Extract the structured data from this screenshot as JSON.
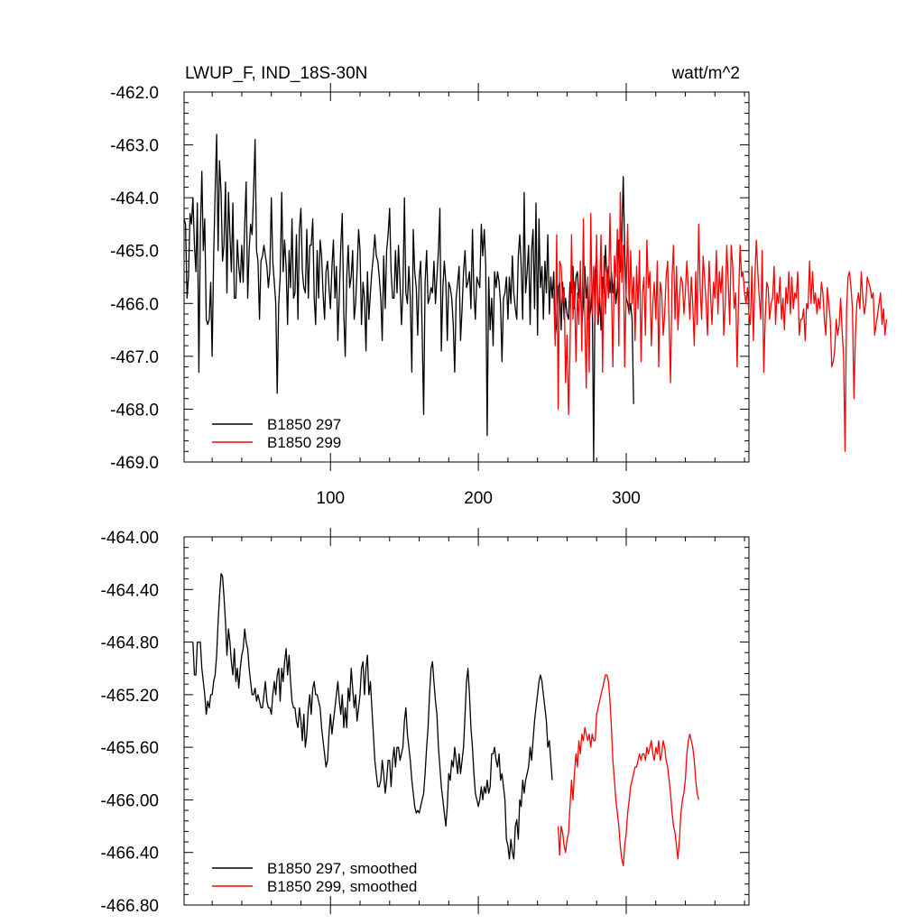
{
  "chart_data": [
    {
      "type": "line",
      "title": "LWUP_F, IND_18S-30N",
      "units": "watt/m^2",
      "xlim": [
        1,
        383
      ],
      "ylim": [
        -469.0,
        -462.0
      ],
      "ytick_values": [
        -462.0,
        -463.0,
        -464.0,
        -465.0,
        -466.0,
        -467.0,
        -468.0,
        -469.0
      ],
      "ytick_labels": [
        "-462.0",
        "-463.0",
        "-464.0",
        "-465.0",
        "-466.0",
        "-467.0",
        "-468.0",
        "-469.0"
      ],
      "xtick_values": [
        100,
        200,
        300
      ],
      "xtick_labels": [
        "100",
        "200",
        "300"
      ],
      "legend_position": "bottom-left",
      "series": [
        {
          "name": "B1850 297",
          "color": "#000000",
          "x_start": 1,
          "values": [
            -464.4,
            -464.5,
            -465.9,
            -465.5,
            -464.3,
            -464.5,
            -464.0,
            -464.9,
            -465.4,
            -464.1,
            -467.3,
            -464.7,
            -463.5,
            -465.0,
            -464.4,
            -466.3,
            -466.4,
            -466.3,
            -465.6,
            -467.0,
            -465.1,
            -463.9,
            -462.8,
            -465.0,
            -463.3,
            -463.9,
            -465.2,
            -464.9,
            -463.7,
            -465.8,
            -463.9,
            -464.7,
            -465.4,
            -464.1,
            -465.9,
            -465.9,
            -464.8,
            -465.3,
            -465.6,
            -464.9,
            -465.6,
            -464.5,
            -463.7,
            -465.9,
            -465.0,
            -464.5,
            -464.7,
            -463.9,
            -462.9,
            -465.0,
            -465.2,
            -466.3,
            -465.2,
            -465.1,
            -464.9,
            -465.1,
            -465.3,
            -465.7,
            -465.4,
            -464.0,
            -465.2,
            -465.6,
            -466.0,
            -467.7,
            -466.0,
            -465.5,
            -463.9,
            -465.4,
            -464.8,
            -465.3,
            -466.4,
            -465.0,
            -465.7,
            -464.4,
            -465.9,
            -465.8,
            -464.7,
            -466.3,
            -464.6,
            -464.2,
            -465.4,
            -465.7,
            -465.8,
            -464.6,
            -465.9,
            -464.9,
            -464.9,
            -464.4,
            -465.9,
            -466.4,
            -465.0,
            -465.9,
            -464.8,
            -465.1,
            -465.8,
            -466.3,
            -465.4,
            -465.2,
            -465.7,
            -466.1,
            -465.3,
            -464.8,
            -465.9,
            -465.3,
            -466.7,
            -465.8,
            -464.9,
            -464.3,
            -466.2,
            -467.0,
            -465.5,
            -464.9,
            -465.7,
            -465.5,
            -465.0,
            -466.3,
            -466.0,
            -465.4,
            -464.6,
            -465.0,
            -466.4,
            -465.6,
            -465.9,
            -466.9,
            -465.4,
            -466.3,
            -465.8,
            -465.4,
            -465.1,
            -464.7,
            -465.1,
            -465.2,
            -465.5,
            -465.9,
            -466.7,
            -465.1,
            -466.1,
            -465.0,
            -464.7,
            -464.2,
            -465.4,
            -465.9,
            -465.9,
            -465.0,
            -465.8,
            -464.9,
            -465.6,
            -466.4,
            -465.8,
            -464.0,
            -465.8,
            -466.0,
            -465.3,
            -465.9,
            -467.3,
            -464.6,
            -465.4,
            -465.7,
            -466.6,
            -465.5,
            -465.2,
            -466.5,
            -468.1,
            -465.6,
            -465.0,
            -466.0,
            -465.9,
            -465.7,
            -465.8,
            -465.2,
            -466.0,
            -465.5,
            -465.0,
            -464.2,
            -466.9,
            -465.7,
            -465.2,
            -465.6,
            -466.7,
            -465.6,
            -465.7,
            -465.9,
            -466.4,
            -467.3,
            -465.9,
            -465.6,
            -465.3,
            -466.7,
            -466.1,
            -465.4,
            -465.0,
            -465.7,
            -465.6,
            -465.4,
            -466.1,
            -464.6,
            -465.8,
            -466.3,
            -465.5,
            -465.6,
            -465.7,
            -464.5,
            -465.1,
            -464.6,
            -465.3,
            -468.5,
            -465.5,
            -466.5,
            -465.9,
            -466.8,
            -465.4,
            -465.7,
            -465.4,
            -465.6,
            -466.0,
            -467.1,
            -465.9,
            -465.8,
            -465.5,
            -466.3,
            -465.5,
            -466.0,
            -465.1,
            -465.8,
            -466.1,
            -466.3,
            -465.1,
            -464.7,
            -465.3,
            -466.3,
            -463.9,
            -465.8,
            -465.4,
            -464.9,
            -466.4,
            -465.0,
            -464.6,
            -466.1,
            -464.1,
            -466.6,
            -464.4,
            -465.7,
            -465.3,
            -466.3,
            -465.2,
            -465.8,
            -464.7,
            -466.2,
            -465.5,
            -465.9,
            -465.4,
            -466.6,
            -466.4,
            -465.7,
            -465.6,
            -466.5,
            -465.6,
            -466.3,
            -465.9,
            -466.2,
            -466.3,
            -465.6,
            -465.8,
            -465.3,
            -466.1,
            -465.5,
            -465.4,
            -465.9,
            -465.6,
            -466.4,
            -466.0,
            -465.3,
            -465.9,
            -465.6,
            -466.3,
            -466.1,
            -465.7,
            -469.0,
            -465.4,
            -465.1,
            -466.4,
            -465.9,
            -466.5,
            -465.5,
            -465.8,
            -464.9,
            -465.6,
            -465.3,
            -465.8,
            -465.4,
            -465.8,
            -465.5,
            -466.0,
            -465.7,
            -464.8,
            -465.4,
            -464.8,
            -463.6,
            -465.0,
            -465.9,
            -466.0,
            -466.2,
            -466.0,
            -466.3,
            -467.9
          ],
          "note": ""
        },
        {
          "name": "B1850 299",
          "color": "#ff0000",
          "x_start": 251,
          "values": [
            -465.8,
            -466.8,
            -464.7,
            -468.0,
            -465.2,
            -465.3,
            -466.0,
            -465.7,
            -467.5,
            -466.6,
            -468.1,
            -466.9,
            -464.7,
            -466.3,
            -465.6,
            -467.1,
            -465.8,
            -466.4,
            -465.2,
            -466.9,
            -464.4,
            -466.3,
            -467.6,
            -465.5,
            -467.3,
            -464.3,
            -466.2,
            -465.3,
            -466.4,
            -464.7,
            -466.3,
            -465.8,
            -464.7,
            -467.3,
            -465.1,
            -466.2,
            -465.4,
            -465.9,
            -464.3,
            -465.7,
            -467.2,
            -465.1,
            -465.5,
            -464.6,
            -466.8,
            -463.9,
            -465.6,
            -464.9,
            -467.2,
            -465.7,
            -464.5,
            -466.2,
            -465.0,
            -466.0,
            -465.5,
            -466.7,
            -465.3,
            -466.1,
            -465.0,
            -467.1,
            -465.8,
            -465.5,
            -466.6,
            -464.8,
            -465.7,
            -465.4,
            -466.8,
            -466.0,
            -465.6,
            -466.3,
            -465.2,
            -467.2,
            -465.6,
            -465.8,
            -466.6,
            -466.2,
            -465.5,
            -465.2,
            -466.4,
            -467.5,
            -465.5,
            -464.9,
            -466.3,
            -465.3,
            -466.5,
            -465.9,
            -465.5,
            -465.6,
            -466.2,
            -465.8,
            -465.2,
            -465.7,
            -466.3,
            -465.5,
            -466.0,
            -466.8,
            -465.4,
            -466.4,
            -464.5,
            -465.7,
            -466.3,
            -465.1,
            -465.5,
            -466.0,
            -466.6,
            -465.2,
            -465.8,
            -466.4,
            -465.6,
            -465.9,
            -465.0,
            -466.2,
            -465.4,
            -465.8,
            -465.3,
            -466.6,
            -466.0,
            -464.9,
            -465.6,
            -466.4,
            -464.9,
            -465.3,
            -466.1,
            -465.8,
            -467.2,
            -465.9,
            -464.9,
            -465.5,
            -465.4,
            -465.8,
            -466.0,
            -465.7,
            -466.2,
            -466.4,
            -465.3,
            -466.7,
            -465.5,
            -464.8,
            -465.4,
            -465.9,
            -466.3,
            -465.0,
            -467.3,
            -466.3,
            -465.6,
            -465.7,
            -466.3,
            -466.0,
            -465.9,
            -465.3,
            -466.4,
            -465.8,
            -466.0,
            -465.5,
            -466.3,
            -465.9,
            -466.5,
            -465.7,
            -466.0,
            -465.4,
            -466.2,
            -465.5,
            -466.1,
            -465.8,
            -465.9,
            -465.4,
            -466.6,
            -466.3,
            -466.3,
            -466.1,
            -466.7,
            -466.0,
            -466.1,
            -465.2,
            -466.0,
            -465.4,
            -466.0,
            -465.8,
            -466.2,
            -465.9,
            -466.1,
            -465.6,
            -465.8,
            -466.3,
            -466.6,
            -465.7,
            -466.0,
            -466.3,
            -467.2,
            -467.1,
            -466.9,
            -466.3,
            -466.6,
            -466.4,
            -465.9,
            -466.5,
            -467.0,
            -468.8,
            -466.1,
            -465.5,
            -465.4,
            -465.7,
            -466.1,
            -467.8,
            -466.6,
            -466.0,
            -465.8,
            -466.1,
            -465.4,
            -465.9,
            -466.2,
            -466.0,
            -465.5,
            -465.6,
            -465.7,
            -465.9,
            -465.8,
            -466.6,
            -466.4,
            -466.2,
            -466.0,
            -465.8,
            -466.4,
            -466.1,
            -466.6,
            -466.3
          ]
        }
      ]
    },
    {
      "type": "line",
      "title": "",
      "xlim": [
        1,
        383
      ],
      "ylim": [
        -466.8,
        -464.0
      ],
      "ytick_values": [
        -464.0,
        -464.4,
        -464.8,
        -465.2,
        -465.6,
        -466.0,
        -466.4,
        -466.8
      ],
      "ytick_labels": [
        "-464.00",
        "-464.40",
        "-464.80",
        "-465.20",
        "-465.60",
        "-466.00",
        "-466.40",
        "-466.80"
      ],
      "xtick_values": [
        100,
        200,
        300
      ],
      "xtick_labels": [
        "",
        "",
        ""
      ],
      "legend_position": "bottom-left",
      "series": [
        {
          "name": "B1850 297, smoothed",
          "color": "#000000",
          "x_start": 7,
          "values": [
            -464.8,
            -465.05,
            -465.05,
            -464.8,
            -464.8,
            -464.8,
            -465.0,
            -465.1,
            -465.2,
            -465.35,
            -465.25,
            -465.3,
            -465.2,
            -465.2,
            -465.1,
            -465.05,
            -464.9,
            -464.65,
            -464.45,
            -464.28,
            -464.3,
            -464.45,
            -464.65,
            -464.9,
            -464.7,
            -464.8,
            -464.95,
            -465.05,
            -464.85,
            -465.1,
            -465.0,
            -465.15,
            -465.0,
            -464.9,
            -464.85,
            -464.7,
            -464.8,
            -464.85,
            -465.0,
            -465.1,
            -465.2,
            -465.2,
            -465.15,
            -465.25,
            -465.2,
            -465.25,
            -465.3,
            -465.3,
            -465.2,
            -465.1,
            -465.25,
            -465.3,
            -465.3,
            -465.35,
            -465.2,
            -465.1,
            -465.2,
            -465.05,
            -465.0,
            -465.25,
            -465.0,
            -465.1,
            -464.95,
            -464.85,
            -465.05,
            -464.9,
            -465.1,
            -465.25,
            -465.3,
            -465.3,
            -465.4,
            -465.45,
            -465.3,
            -465.4,
            -465.55,
            -465.35,
            -465.6,
            -465.5,
            -465.3,
            -465.2,
            -465.35,
            -465.15,
            -465.1,
            -465.2,
            -465.2,
            -465.25,
            -465.3,
            -465.45,
            -465.55,
            -465.65,
            -465.75,
            -465.7,
            -465.5,
            -465.35,
            -465.5,
            -465.4,
            -465.3,
            -465.2,
            -465.1,
            -465.25,
            -465.35,
            -465.2,
            -465.45,
            -465.3,
            -465.45,
            -465.15,
            -465.25,
            -465.0,
            -465.15,
            -465.3,
            -465.2,
            -465.4,
            -465.3,
            -465.2,
            -465.0,
            -464.95,
            -465.2,
            -465.0,
            -464.9,
            -465.2,
            -465.1,
            -465.3,
            -465.5,
            -465.7,
            -465.8,
            -465.9,
            -465.9,
            -465.85,
            -465.7,
            -465.8,
            -465.95,
            -465.85,
            -465.7,
            -465.7,
            -465.9,
            -465.7,
            -465.6,
            -465.75,
            -465.6,
            -465.6,
            -465.7,
            -465.65,
            -465.6,
            -465.4,
            -465.3,
            -465.5,
            -465.6,
            -465.7,
            -465.85,
            -465.95,
            -466.05,
            -466.1,
            -466.08,
            -466.1,
            -466.05,
            -466.0,
            -465.95,
            -465.8,
            -465.6,
            -465.45,
            -465.2,
            -465.0,
            -464.95,
            -465.1,
            -465.25,
            -465.35,
            -465.6,
            -465.75,
            -465.9,
            -466.0,
            -466.1,
            -466.2,
            -466.05,
            -465.8,
            -465.85,
            -465.7,
            -465.75,
            -465.6,
            -465.7,
            -465.8,
            -465.65,
            -465.8,
            -465.7,
            -465.6,
            -465.35,
            -465.1,
            -465.0,
            -465.2,
            -465.45,
            -465.6,
            -465.8,
            -465.95,
            -466.0,
            -466.05,
            -466.0,
            -465.9,
            -466.0,
            -465.9,
            -465.95,
            -465.85,
            -465.95,
            -465.9,
            -465.65,
            -465.65,
            -465.6,
            -465.7,
            -465.75,
            -465.65,
            -465.85,
            -465.8,
            -465.9,
            -466.0,
            -466.3,
            -466.35,
            -466.45,
            -466.3,
            -466.4,
            -466.45,
            -466.2,
            -466.15,
            -466.3,
            -466.0,
            -466.05,
            -465.85,
            -465.95,
            -465.85,
            -465.8,
            -465.75,
            -465.6,
            -465.7,
            -465.55,
            -465.4,
            -465.3,
            -465.2,
            -465.1,
            -465.05,
            -465.1,
            -465.2,
            -465.3,
            -465.4,
            -465.6,
            -465.55,
            -465.7,
            -465.85
          ]
        },
        {
          "name": "B1850 299, smoothed",
          "color": "#ff0000",
          "x_start": 254,
          "values": [
            -466.2,
            -466.42,
            -466.2,
            -466.25,
            -466.35,
            -466.4,
            -466.3,
            -466.25,
            -466.05,
            -465.85,
            -466.0,
            -465.8,
            -465.65,
            -465.75,
            -465.55,
            -465.65,
            -465.5,
            -465.55,
            -465.45,
            -465.5,
            -465.55,
            -465.5,
            -465.6,
            -465.5,
            -465.55,
            -465.55,
            -465.35,
            -465.3,
            -465.25,
            -465.2,
            -465.15,
            -465.1,
            -465.05,
            -465.05,
            -465.1,
            -465.25,
            -465.45,
            -465.7,
            -465.85,
            -466.0,
            -466.1,
            -466.2,
            -466.35,
            -466.45,
            -466.5,
            -466.35,
            -466.25,
            -466.1,
            -466.0,
            -465.9,
            -465.85,
            -465.8,
            -465.75,
            -465.75,
            -465.7,
            -465.65,
            -465.7,
            -465.65,
            -465.65,
            -465.7,
            -465.6,
            -465.65,
            -465.6,
            -465.55,
            -465.65,
            -465.7,
            -465.6,
            -465.65,
            -465.55,
            -465.7,
            -465.65,
            -465.55,
            -465.6,
            -465.7,
            -465.75,
            -465.85,
            -465.95,
            -466.1,
            -466.2,
            -466.25,
            -466.35,
            -466.45,
            -466.3,
            -466.1,
            -466.0,
            -465.95,
            -465.85,
            -465.65,
            -465.55,
            -465.5,
            -465.55,
            -465.6,
            -465.7,
            -465.85,
            -465.95,
            -466.0
          ]
        }
      ]
    }
  ]
}
